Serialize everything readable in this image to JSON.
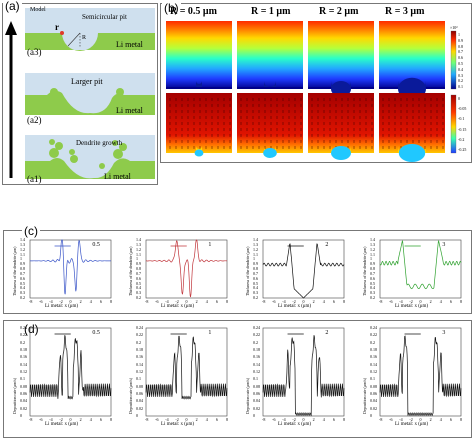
{
  "panel_a": {
    "label": "(a)",
    "model_label": "Model",
    "rows": [
      {
        "label": "(a3)",
        "title": "Semicircular pit",
        "metal": "Li metal",
        "r_mark": "r",
        "R_mark": "R"
      },
      {
        "label": "(a2)",
        "title": "Larger pit",
        "metal": "Li metal"
      },
      {
        "label": "(a1)",
        "title": "Dendrite growth",
        "metal": "Li metal"
      }
    ]
  },
  "panel_b": {
    "label": "(b)",
    "headers": [
      "R = 0.5 μm",
      "R = 1 μm",
      "R = 2 μm",
      "R = 3 μm"
    ],
    "cbar_top": {
      "exp": "×10³",
      "ticks": [
        "1",
        "0.9",
        "0.8",
        "0.7",
        "0.6",
        "0.5",
        "0.4",
        "0.3",
        "0.2",
        "0.1"
      ]
    },
    "cbar_bottom": {
      "ticks": [
        "0",
        "-0.05",
        "-0.1",
        "-0.15",
        "-0.2",
        "-0.25"
      ]
    }
  },
  "panel_c": {
    "label": "(c)",
    "ylabel": "Thickness of the dendrite (μm)",
    "xlabel": "Li metal: x (μm)",
    "yticks": [
      "1.4",
      "1.3",
      "1.2",
      "1.1",
      "1",
      "0.9",
      "0.8",
      "0.7",
      "0.6",
      "0.5",
      "0.4",
      "0.3",
      "0.2"
    ],
    "xticks": [
      "-8",
      "-6",
      "-4",
      "-2",
      "0",
      "2",
      "4",
      "6",
      "8"
    ],
    "legends": [
      "0.5",
      "1",
      "2",
      "3"
    ],
    "colors": [
      "#3a55c8",
      "#c0343a",
      "#111111",
      "#2ea12e"
    ]
  },
  "panel_d": {
    "label": "(d)",
    "ylabel": "Deposition rate (μm/s)",
    "xlabel": "Li metal: x (μm)",
    "yticks": [
      "0.24",
      "0.22",
      "0.2",
      "0.18",
      "0.16",
      "0.14",
      "0.12",
      "0.1",
      "0.08",
      "0.06",
      "0.04",
      "0.02",
      "0"
    ],
    "xticks": [
      "-8",
      "-6",
      "-4",
      "-2",
      "0",
      "2",
      "4",
      "6",
      "8"
    ],
    "legends": [
      "0.5",
      "1",
      "2",
      "3"
    ],
    "colors": [
      "#111111",
      "#111111",
      "#111111",
      "#111111"
    ]
  }
}
